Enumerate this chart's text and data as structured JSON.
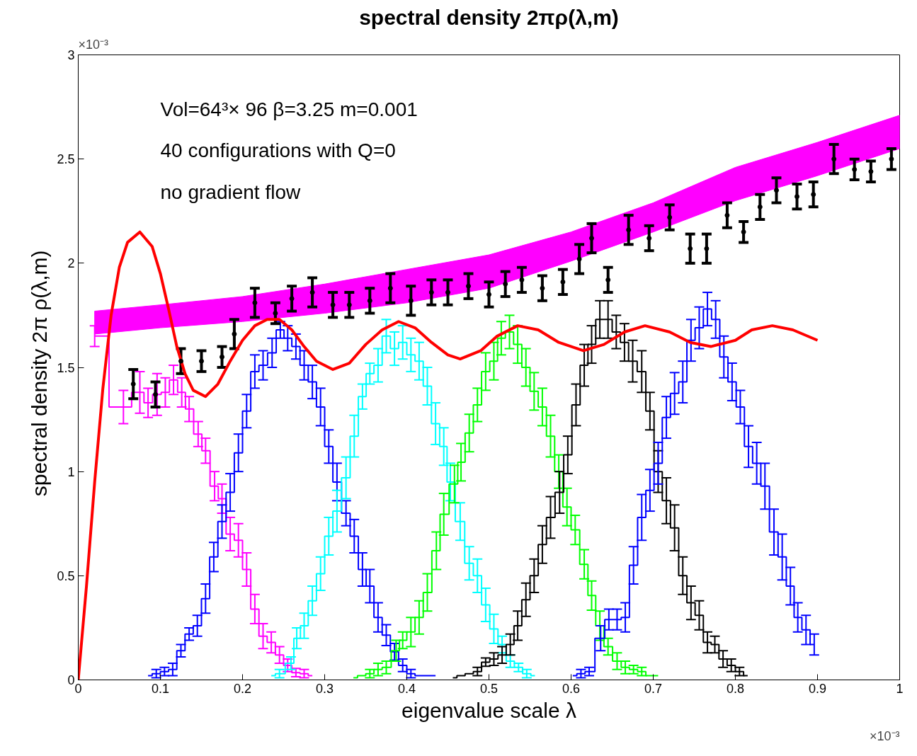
{
  "chart_data": {
    "type": "step",
    "title": "spectral density 2πρ(λ,m)",
    "xlabel": "eigenvalue scale λ",
    "ylabel": "spectral density  2π  ρ(λ,m)",
    "annotations": [
      "Vol=64³× 96   β=3.25   m=0.001",
      "40 configurations with Q=0",
      "no gradient flow",
      "×10⁻³",
      "×10⁻³"
    ],
    "xlim": [
      0,
      1
    ],
    "ylim": [
      0,
      3
    ],
    "xticks": [
      0,
      0.1,
      0.2,
      0.3,
      0.4,
      0.5,
      0.6,
      0.7,
      0.8,
      0.9,
      1
    ],
    "yticks": [
      0,
      0.5,
      1,
      1.5,
      2,
      2.5,
      3
    ],
    "series": [
      {
        "type": "line",
        "color": "#ff00ff",
        "x": [
          0.02,
          0.1,
          0.2,
          0.3,
          0.4,
          0.5,
          0.6,
          0.7,
          0.8,
          0.9,
          1.0
        ],
        "values": [
          null,
          null,
          null,
          null,
          null,
          null,
          null,
          null,
          null,
          null,
          null
        ],
        "lower": [
          1.66,
          1.69,
          1.72,
          1.76,
          1.81,
          1.88,
          2.01,
          2.15,
          2.3,
          2.42,
          2.55
        ],
        "upper": [
          1.77,
          1.8,
          1.84,
          1.9,
          1.97,
          2.04,
          2.15,
          2.29,
          2.46,
          2.58,
          2.71
        ]
      },
      {
        "color": "#ff00ff",
        "x": [
          0.02,
          0.055,
          0.075,
          0.085,
          0.096,
          0.106,
          0.116,
          0.126,
          0.135,
          0.146,
          0.155,
          0.166,
          0.175,
          0.185,
          0.195,
          0.205,
          0.215,
          0.225,
          0.235,
          0.245,
          0.255,
          0.265,
          0.275,
          0.285
        ],
        "values": [
          1.65,
          1.31,
          1.38,
          1.33,
          1.37,
          1.38,
          1.44,
          1.38,
          1.3,
          1.18,
          1.1,
          0.93,
          0.87,
          0.7,
          0.67,
          0.53,
          0.34,
          0.21,
          0.18,
          0.12,
          0.07,
          0.035,
          0.03,
          0.02
        ],
        "errors": [
          0.05,
          0.08,
          0.1,
          0.07,
          0.1,
          0.07,
          0.07,
          0.07,
          0.06,
          0.06,
          0.06,
          0.07,
          0.07,
          0.08,
          0.08,
          0.08,
          0.07,
          0.06,
          0.05,
          0.04,
          0.03,
          0.02,
          0.02,
          null
        ]
      },
      {
        "color": "#0000ff",
        "x": [
          0.085,
          0.095,
          0.105,
          0.115,
          0.125,
          0.135,
          0.145,
          0.155,
          0.165,
          0.175,
          0.185,
          0.195,
          0.205,
          0.215,
          0.225,
          0.236,
          0.246,
          0.255,
          0.265,
          0.275,
          0.285,
          0.295,
          0.305,
          0.315,
          0.326,
          0.336,
          0.346,
          0.355,
          0.365,
          0.375,
          0.385,
          0.395,
          0.405,
          0.415,
          0.425,
          0.435
        ],
        "values": [
          0.02,
          0.03,
          0.04,
          0.05,
          0.14,
          0.22,
          0.26,
          0.39,
          0.59,
          0.76,
          0.9,
          1.09,
          1.29,
          1.48,
          1.51,
          1.57,
          1.68,
          1.64,
          1.6,
          1.51,
          1.43,
          1.31,
          1.12,
          0.95,
          0.8,
          0.69,
          0.53,
          0.45,
          0.3,
          0.215,
          0.135,
          0.07,
          0.03,
          0.02,
          0.02,
          0.02
        ],
        "errors": [
          null,
          0.02,
          0.02,
          0.03,
          0.03,
          0.03,
          0.05,
          0.07,
          0.07,
          0.08,
          0.09,
          0.09,
          0.08,
          0.08,
          0.07,
          0.07,
          0.04,
          0.06,
          0.06,
          0.07,
          0.08,
          0.09,
          0.08,
          0.09,
          0.06,
          0.08,
          0.08,
          0.08,
          0.07,
          0.05,
          0.04,
          0.03,
          0.02,
          null,
          null,
          null
        ]
      },
      {
        "color": "#00ffff",
        "x": [
          0.235,
          0.245,
          0.259,
          0.266,
          0.275,
          0.285,
          0.295,
          0.305,
          0.315,
          0.326,
          0.336,
          0.346,
          0.355,
          0.365,
          0.375,
          0.385,
          0.395,
          0.405,
          0.415,
          0.425,
          0.435,
          0.445,
          0.453,
          0.465,
          0.476,
          0.486,
          0.496,
          0.506,
          0.516,
          0.526,
          0.536,
          0.546,
          0.556
        ],
        "values": [
          0.02,
          0.03,
          0.08,
          0.2,
          0.26,
          0.38,
          0.51,
          0.69,
          0.81,
          0.97,
          1.17,
          1.36,
          1.47,
          1.51,
          1.65,
          1.59,
          1.62,
          1.56,
          1.53,
          1.41,
          1.23,
          1.12,
          0.95,
          0.76,
          0.56,
          0.5,
          0.36,
          0.245,
          0.17,
          0.09,
          0.06,
          0.03,
          0.02
        ],
        "errors": [
          null,
          0.02,
          0.03,
          0.05,
          0.06,
          0.07,
          0.08,
          0.09,
          0.1,
          0.1,
          0.1,
          0.06,
          0.05,
          0.08,
          0.08,
          0.08,
          0.08,
          0.08,
          0.09,
          0.09,
          0.1,
          0.09,
          0.09,
          0.09,
          0.08,
          0.08,
          0.08,
          0.07,
          0.04,
          0.03,
          0.02,
          0.02,
          null
        ]
      },
      {
        "color": "#00ff00",
        "x": [
          0.335,
          0.345,
          0.355,
          0.365,
          0.375,
          0.387,
          0.395,
          0.405,
          0.415,
          0.425,
          0.436,
          0.445,
          0.458,
          0.466,
          0.476,
          0.486,
          0.496,
          0.506,
          0.515,
          0.525,
          0.535,
          0.545,
          0.555,
          0.565,
          0.575,
          0.585,
          0.595,
          0.605,
          0.616,
          0.625,
          0.635,
          0.645,
          0.656,
          0.666,
          0.676,
          0.686,
          0.696,
          0.706
        ],
        "values": [
          0.01,
          0.02,
          0.03,
          0.05,
          0.06,
          0.14,
          0.19,
          0.23,
          0.3,
          0.42,
          0.62,
          0.795,
          0.94,
          1.045,
          1.185,
          1.32,
          1.48,
          1.53,
          1.64,
          1.67,
          1.61,
          1.5,
          1.385,
          1.31,
          1.17,
          1.0,
          0.83,
          0.72,
          0.555,
          0.405,
          0.26,
          0.16,
          0.09,
          0.06,
          0.05,
          0.04,
          0.02,
          0.02
        ],
        "errors": [
          null,
          null,
          0.02,
          0.03,
          0.03,
          0.05,
          0.04,
          0.07,
          0.08,
          0.09,
          0.09,
          0.1,
          0.09,
          0.09,
          0.09,
          0.08,
          0.09,
          0.09,
          0.08,
          0.08,
          0.09,
          0.09,
          0.09,
          0.09,
          0.1,
          0.08,
          0.09,
          0.07,
          0.07,
          0.07,
          0.07,
          0.04,
          0.04,
          0.03,
          0.02,
          0.02,
          null,
          null
        ]
      },
      {
        "color": "#000000",
        "x": [
          0.456,
          0.466,
          0.476,
          0.486,
          0.496,
          0.506,
          0.516,
          0.526,
          0.535,
          0.545,
          0.555,
          0.565,
          0.575,
          0.586,
          0.596,
          0.606,
          0.616,
          0.625,
          0.635,
          0.645,
          0.655,
          0.665,
          0.675,
          0.686,
          0.696,
          0.706,
          0.716,
          0.726,
          0.736,
          0.746,
          0.756,
          0.766,
          0.775,
          0.785,
          0.795,
          0.805,
          0.815
        ],
        "values": [
          0.01,
          0.02,
          0.03,
          0.04,
          0.085,
          0.1,
          0.12,
          0.17,
          0.26,
          0.385,
          0.5,
          0.65,
          0.78,
          0.9,
          1.08,
          1.32,
          1.51,
          1.61,
          1.73,
          1.73,
          1.67,
          1.62,
          1.53,
          1.48,
          1.29,
          1.0,
          0.86,
          0.73,
          0.5,
          0.37,
          0.31,
          0.18,
          0.17,
          0.1,
          0.07,
          0.04,
          0.02
        ],
        "errors": [
          null,
          null,
          null,
          0.02,
          0.02,
          0.03,
          0.04,
          0.05,
          0.07,
          0.08,
          0.08,
          0.09,
          0.1,
          0.1,
          0.09,
          0.1,
          0.1,
          0.09,
          0.09,
          0.09,
          0.08,
          0.09,
          0.1,
          0.1,
          0.09,
          0.1,
          0.11,
          0.11,
          0.09,
          0.08,
          0.07,
          0.05,
          0.04,
          0.04,
          0.03,
          0.02,
          null
        ]
      },
      {
        "color": "#0000ff",
        "x": [
          0.602,
          0.612,
          0.622,
          0.636,
          0.646,
          0.656,
          0.666,
          0.676,
          0.686,
          0.696,
          0.706,
          0.716,
          0.726,
          0.736,
          0.746,
          0.756,
          0.766,
          0.776,
          0.786,
          0.796,
          0.806,
          0.816,
          0.826,
          0.836,
          0.847,
          0.857,
          0.867,
          0.876,
          0.886,
          0.896
        ],
        "values": [
          0.02,
          0.03,
          0.04,
          0.2,
          0.29,
          0.29,
          0.3,
          0.55,
          0.78,
          0.91,
          1.04,
          1.26,
          1.375,
          1.43,
          1.63,
          1.69,
          1.78,
          1.73,
          1.55,
          1.43,
          1.31,
          1.12,
          1.04,
          0.93,
          0.71,
          0.59,
          0.45,
          0.3,
          0.24,
          0.17
        ],
        "errors": [
          null,
          0.02,
          0.02,
          0.06,
          0.05,
          0.05,
          0.07,
          0.09,
          0.11,
          0.1,
          0.1,
          0.1,
          0.1,
          0.1,
          0.1,
          0.1,
          0.08,
          0.09,
          0.1,
          0.09,
          0.08,
          0.1,
          0.1,
          0.11,
          0.11,
          0.11,
          0.09,
          0.07,
          0.07,
          0.05
        ]
      },
      {
        "type": "scatter",
        "marker": "circle",
        "color": "#000000",
        "x": [
          0.067,
          0.094,
          0.125,
          0.15,
          0.175,
          0.19,
          0.215,
          0.24,
          0.26,
          0.285,
          0.31,
          0.33,
          0.355,
          0.38,
          0.405,
          0.43,
          0.45,
          0.475,
          0.5,
          0.52,
          0.54,
          0.565,
          0.59,
          0.61,
          0.625,
          0.645,
          0.67,
          0.695,
          0.72,
          0.745,
          0.765,
          0.79,
          0.81,
          0.83,
          0.85,
          0.875,
          0.895,
          0.92,
          0.945,
          0.965,
          0.99
        ],
        "values": [
          1.42,
          1.37,
          1.53,
          1.53,
          1.55,
          1.66,
          1.81,
          1.76,
          1.83,
          1.86,
          1.8,
          1.8,
          1.82,
          1.88,
          1.82,
          1.86,
          1.86,
          1.89,
          1.85,
          1.9,
          1.92,
          1.88,
          1.91,
          2.02,
          2.12,
          1.92,
          2.16,
          2.12,
          2.22,
          2.07,
          2.07,
          2.23,
          2.15,
          2.27,
          2.35,
          2.32,
          2.33,
          2.5,
          2.45,
          2.44,
          2.5
        ],
        "errors": [
          0.07,
          0.06,
          0.06,
          0.05,
          0.05,
          0.07,
          0.07,
          0.05,
          0.06,
          0.07,
          0.06,
          0.06,
          0.06,
          0.07,
          0.07,
          0.06,
          0.06,
          0.06,
          0.06,
          0.06,
          0.06,
          0.06,
          0.06,
          0.07,
          0.07,
          0.06,
          0.07,
          0.06,
          0.06,
          0.07,
          0.07,
          0.06,
          0.05,
          0.06,
          0.06,
          0.06,
          0.06,
          0.07,
          0.05,
          0.05,
          0.05
        ]
      },
      {
        "type": "line",
        "color": "#ff0000",
        "x": [
          0,
          0.01,
          0.02,
          0.03,
          0.04,
          0.05,
          0.06,
          0.075,
          0.09,
          0.1,
          0.11,
          0.12,
          0.13,
          0.14,
          0.155,
          0.17,
          0.185,
          0.2,
          0.215,
          0.23,
          0.245,
          0.26,
          0.275,
          0.29,
          0.31,
          0.33,
          0.35,
          0.37,
          0.39,
          0.41,
          0.43,
          0.45,
          0.465,
          0.49,
          0.51,
          0.535,
          0.56,
          0.585,
          0.615,
          0.64,
          0.665,
          0.69,
          0.72,
          0.745,
          0.77,
          0.8,
          0.82,
          0.845,
          0.87,
          0.9
        ],
        "values": [
          0,
          0.45,
          0.95,
          1.4,
          1.75,
          1.98,
          2.1,
          2.15,
          2.08,
          1.95,
          1.78,
          1.6,
          1.47,
          1.39,
          1.36,
          1.42,
          1.53,
          1.63,
          1.7,
          1.73,
          1.73,
          1.68,
          1.6,
          1.53,
          1.49,
          1.52,
          1.61,
          1.68,
          1.72,
          1.69,
          1.62,
          1.56,
          1.54,
          1.58,
          1.65,
          1.7,
          1.68,
          1.62,
          1.58,
          1.61,
          1.67,
          1.7,
          1.67,
          1.62,
          1.6,
          1.63,
          1.68,
          1.7,
          1.68,
          1.63
        ]
      }
    ]
  }
}
